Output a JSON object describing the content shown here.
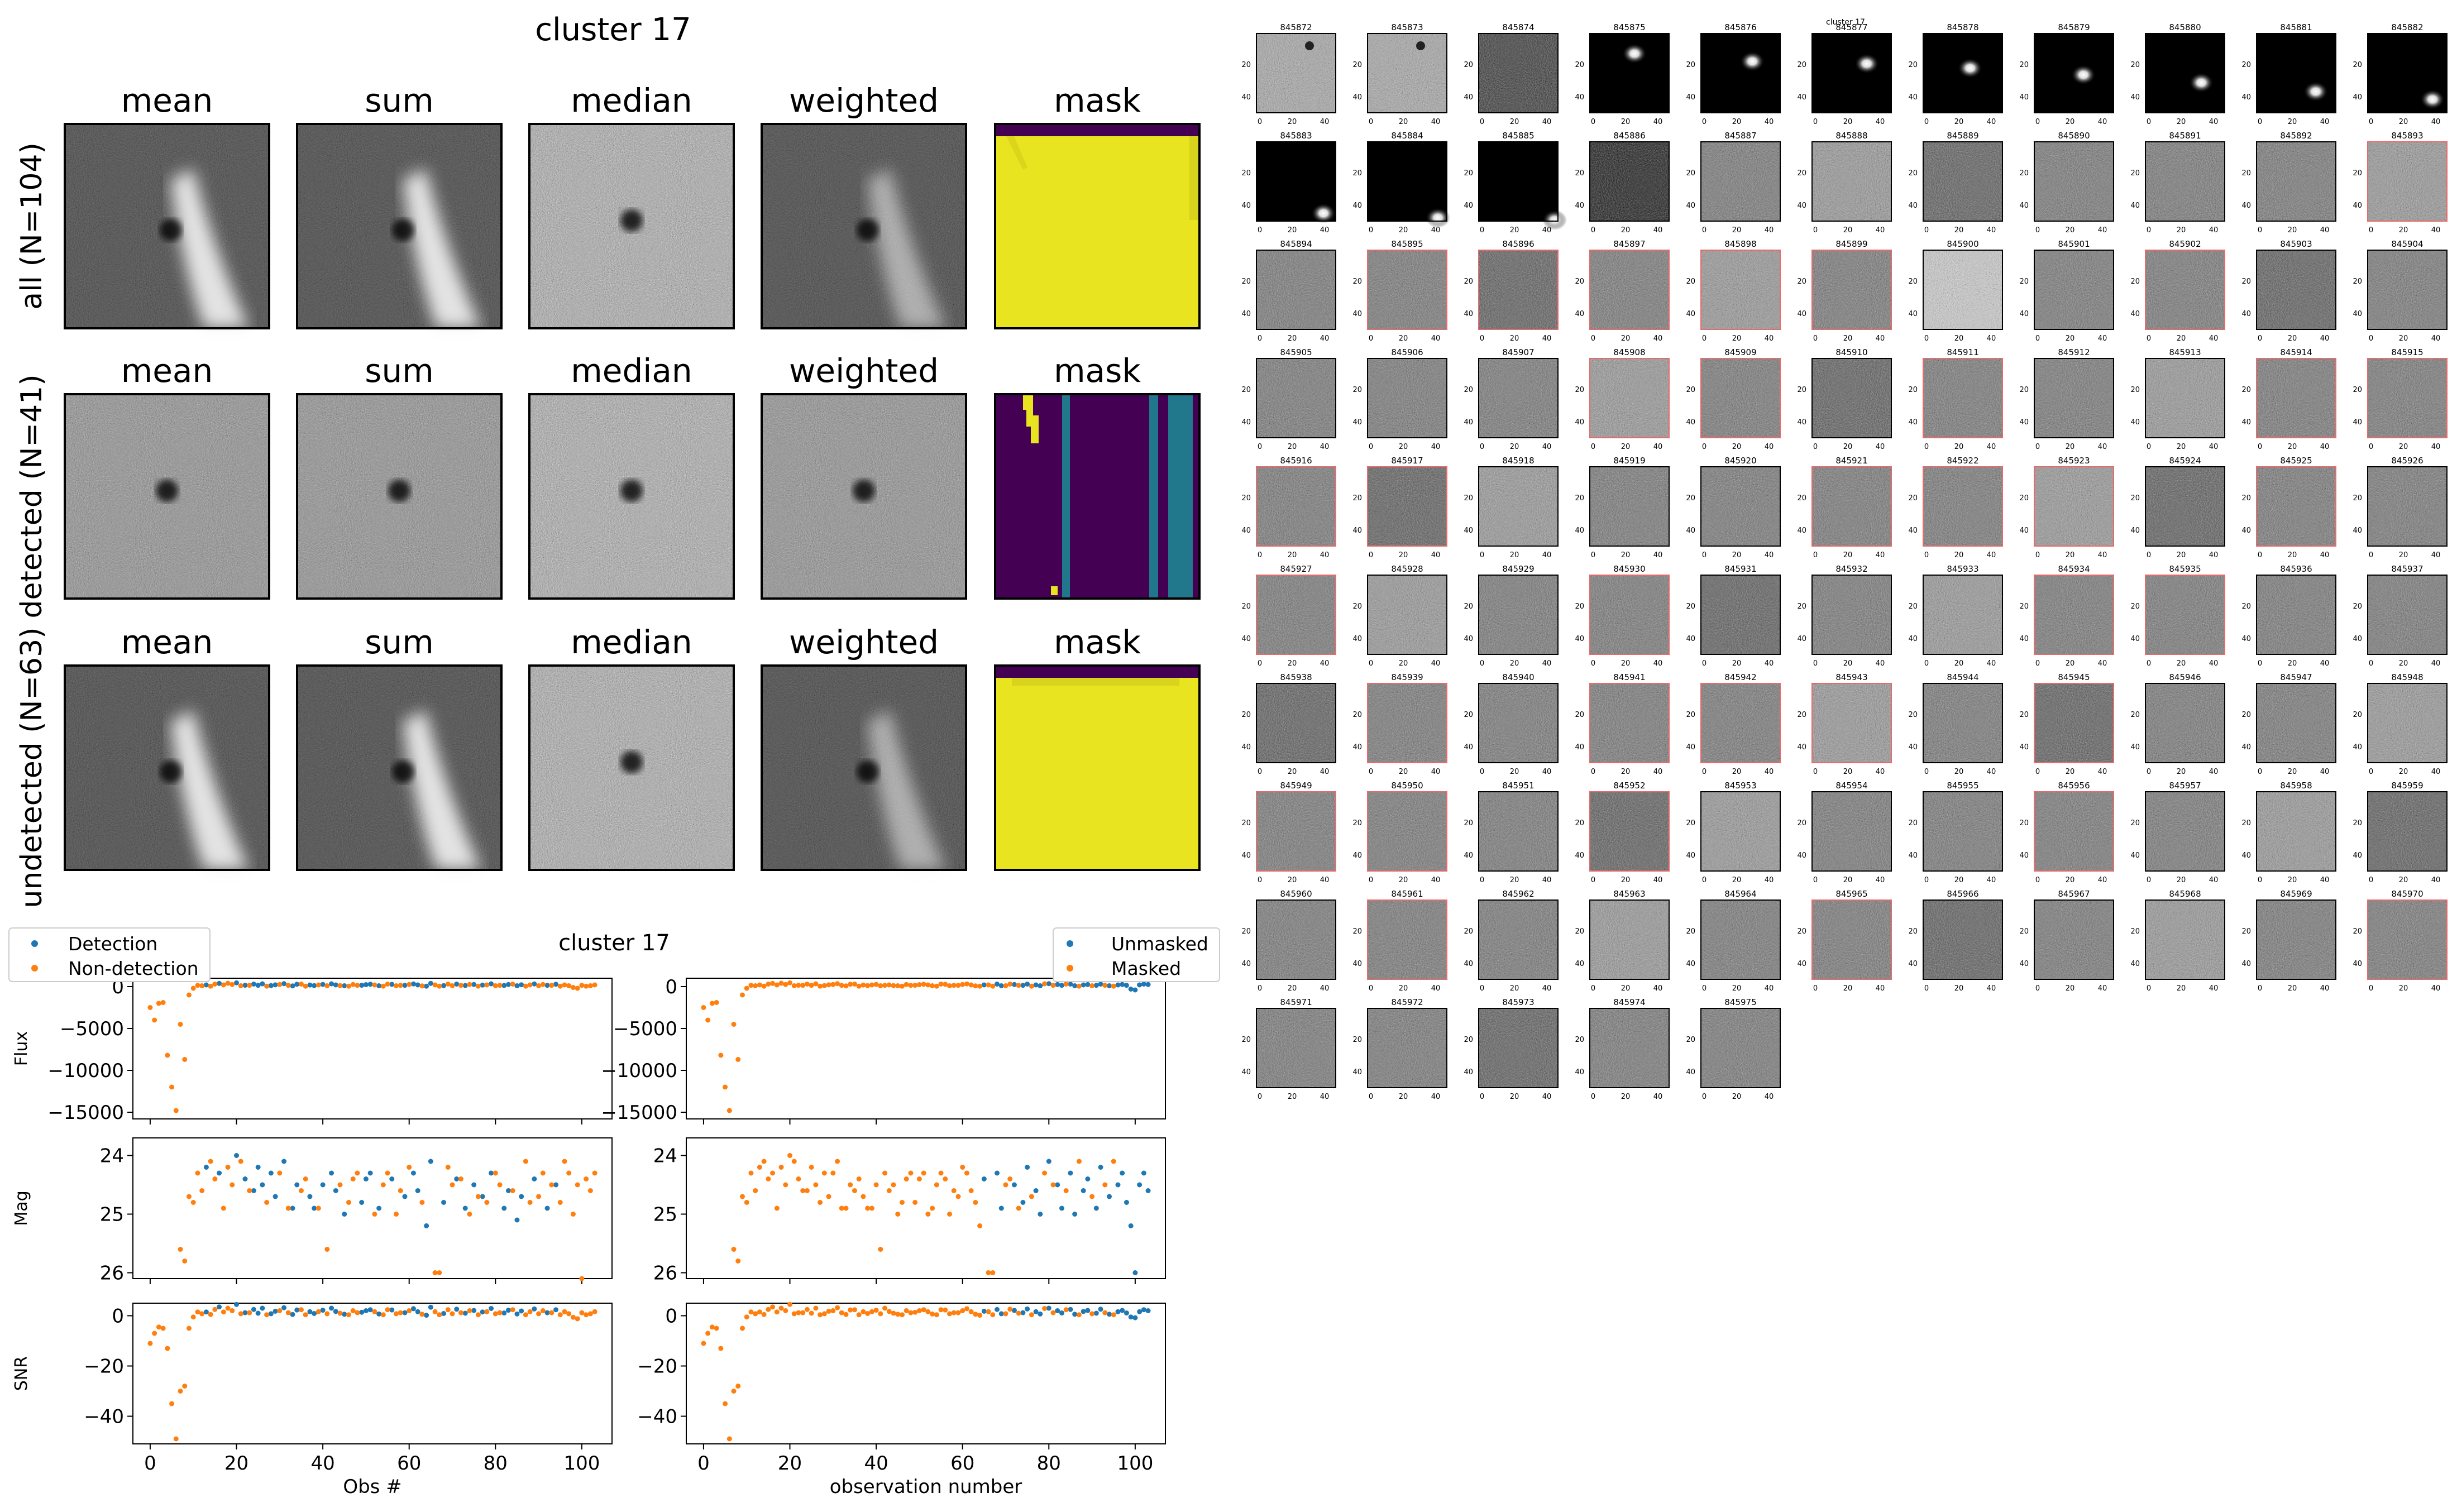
{
  "stack_figure": {
    "title": "cluster 17",
    "column_titles": [
      "mean",
      "sum",
      "median",
      "weighted",
      "mask"
    ],
    "row_labels": [
      "all (N=104)",
      "detected (N=41)",
      "undetected (N=63)"
    ]
  },
  "colors": {
    "detection": "#1f77b4",
    "non_detection": "#ff7f0e",
    "mask_yellow": "#e8e420",
    "mask_purple": "#440154",
    "mask_teal": "#21778c",
    "highlight_border": "#e86a6a"
  },
  "chart_data": [
    {
      "type": "scatter",
      "title": "cluster 17",
      "xlabel": "Obs #",
      "xlim": [
        -4,
        107
      ],
      "xticks": [
        0,
        20,
        40,
        60,
        80,
        100
      ],
      "legend": {
        "placement": "top-left",
        "entries": [
          "Detection",
          "Non-detection"
        ]
      },
      "panels": [
        {
          "ylabel": "Flux",
          "ylim": [
            -15800,
            1000
          ],
          "yticks": [
            0,
            -5000,
            -10000,
            -15000
          ]
        },
        {
          "ylabel": "Mag",
          "ylim": [
            26.1,
            23.7
          ],
          "yticks": [
            24,
            25,
            26
          ]
        },
        {
          "ylabel": "SNR",
          "ylim": [
            -51,
            5
          ],
          "yticks": [
            0,
            -20,
            -40
          ]
        }
      ],
      "series": [
        {
          "name": "Detection",
          "x": [
            13,
            16,
            20,
            22,
            24,
            25,
            26,
            28,
            29,
            31,
            33,
            34,
            37,
            38,
            40,
            42,
            43,
            45,
            49,
            50,
            51,
            53,
            56,
            59,
            61,
            62,
            64,
            65,
            68,
            71,
            73,
            75,
            77,
            79,
            82,
            83,
            85,
            86,
            89,
            92,
            94
          ],
          "flux": [
            200,
            380,
            450,
            160,
            300,
            150,
            330,
            120,
            210,
            350,
            80,
            280,
            190,
            120,
            260,
            330,
            200,
            100,
            160,
            230,
            280,
            100,
            270,
            150,
            320,
            200,
            50,
            380,
            120,
            300,
            130,
            250,
            180,
            330,
            140,
            250,
            100,
            220,
            320,
            150,
            280
          ],
          "mag": [
            24.2,
            24.3,
            24.0,
            24.4,
            24.6,
            24.2,
            24.5,
            24.3,
            24.7,
            24.1,
            24.9,
            24.5,
            24.7,
            24.9,
            24.5,
            24.3,
            24.6,
            25.0,
            24.8,
            24.4,
            24.3,
            24.9,
            24.4,
            24.7,
            24.3,
            24.6,
            25.2,
            24.1,
            24.8,
            24.4,
            24.9,
            24.5,
            24.7,
            24.3,
            24.9,
            24.6,
            25.1,
            24.7,
            24.4,
            24.9,
            24.5
          ],
          "snr": [
            1.5,
            3.5,
            4.5,
            1.2,
            2.5,
            1.0,
            3.0,
            0.8,
            1.8,
            3.2,
            0.5,
            2.3,
            1.6,
            0.9,
            2.2,
            3.0,
            1.7,
            0.6,
            1.4,
            2.0,
            2.4,
            0.7,
            2.3,
            1.2,
            2.8,
            1.6,
            0.2,
            3.4,
            0.9,
            2.6,
            1.0,
            2.1,
            1.5,
            2.9,
            1.1,
            2.2,
            0.7,
            1.9,
            2.7,
            1.2,
            2.4
          ]
        },
        {
          "name": "Non-detection",
          "x": [
            0,
            1,
            2,
            3,
            4,
            5,
            6,
            7,
            8,
            9,
            10,
            11,
            12,
            14,
            15,
            17,
            18,
            19,
            21,
            23,
            27,
            30,
            32,
            35,
            36,
            39,
            41,
            44,
            46,
            47,
            48,
            52,
            54,
            55,
            57,
            58,
            60,
            63,
            66,
            67,
            69,
            70,
            72,
            74,
            76,
            78,
            80,
            81,
            84,
            87,
            88,
            90,
            91,
            93,
            95,
            96,
            97,
            98,
            99,
            100,
            101,
            102,
            103
          ],
          "flux": [
            -2500,
            -4000,
            -2000,
            -1900,
            -8200,
            -12000,
            -14800,
            -4500,
            -8700,
            -1000,
            -200,
            150,
            100,
            50,
            300,
            200,
            400,
            250,
            100,
            150,
            50,
            250,
            150,
            300,
            50,
            200,
            100,
            120,
            50,
            250,
            150,
            200,
            50,
            300,
            100,
            150,
            250,
            80,
            200,
            50,
            300,
            100,
            150,
            250,
            50,
            200,
            100,
            150,
            300,
            50,
            200,
            100,
            250,
            150,
            50,
            200,
            100,
            -100,
            -200,
            150,
            50,
            100,
            200
          ],
          "mag": [
            null,
            null,
            null,
            null,
            null,
            null,
            null,
            25.6,
            25.8,
            24.7,
            24.8,
            24.3,
            24.6,
            24.1,
            24.4,
            24.9,
            24.2,
            24.5,
            24.1,
            24.6,
            24.8,
            24.3,
            24.9,
            24.6,
            24.4,
            24.9,
            25.6,
            24.5,
            24.8,
            24.4,
            24.3,
            25.0,
            24.5,
            24.3,
            25.0,
            24.6,
            24.2,
            24.8,
            26.0,
            26.0,
            24.2,
            24.5,
            24.4,
            25.0,
            24.7,
            24.8,
            24.3,
            24.5,
            24.6,
            24.1,
            24.8,
            24.7,
            24.3,
            24.5,
            24.8,
            24.1,
            24.3,
            25.0,
            24.5,
            26.1,
            24.4,
            24.6,
            24.3
          ],
          "snr": [
            -11,
            -7,
            -4.5,
            -5,
            -13,
            -35,
            -49,
            -30,
            -28,
            -5,
            -0.5,
            1.5,
            0.8,
            0.5,
            2.5,
            1.5,
            3.0,
            2.0,
            0.8,
            1.2,
            0.4,
            2.0,
            1.2,
            2.4,
            0.4,
            1.6,
            0.8,
            1.0,
            0.4,
            2.0,
            1.2,
            1.6,
            0.4,
            2.4,
            0.8,
            1.2,
            2.0,
            0.6,
            1.6,
            0.4,
            2.4,
            0.8,
            1.2,
            2.0,
            0.4,
            1.6,
            0.8,
            1.2,
            2.4,
            0.4,
            1.6,
            0.8,
            2.0,
            1.2,
            0.4,
            1.6,
            0.8,
            -0.6,
            -1.2,
            1.2,
            0.4,
            0.8,
            1.6
          ]
        }
      ]
    },
    {
      "type": "scatter",
      "xlabel": "observation number",
      "xlim": [
        -4,
        107
      ],
      "xticks": [
        0,
        20,
        40,
        60,
        80,
        100
      ],
      "legend": {
        "placement": "top-right",
        "entries": [
          "Unmasked",
          "Masked"
        ]
      },
      "panels": [
        {
          "ylim": [
            -15800,
            1000
          ],
          "yticks": [
            0,
            -5000,
            -10000,
            -15000
          ]
        },
        {
          "ylim": [
            26.1,
            23.7
          ],
          "yticks": [
            24,
            25,
            26
          ]
        },
        {
          "ylim": [
            -51,
            5
          ],
          "yticks": [
            0,
            -20,
            -40
          ]
        }
      ],
      "series": [
        {
          "name": "Unmasked",
          "x": [
            65,
            68,
            69,
            72,
            74,
            75,
            77,
            78,
            80,
            82,
            83,
            85,
            86,
            88,
            89,
            91,
            92,
            94,
            96,
            97,
            98,
            99,
            100,
            101,
            102,
            103
          ],
          "flux": [
            200,
            300,
            100,
            250,
            150,
            300,
            200,
            100,
            350,
            250,
            150,
            300,
            100,
            200,
            250,
            150,
            300,
            100,
            200,
            250,
            150,
            -300,
            -400,
            200,
            300,
            250
          ],
          "mag": [
            24.4,
            24.3,
            24.9,
            24.5,
            24.8,
            24.2,
            24.6,
            25.0,
            24.1,
            24.5,
            24.9,
            24.3,
            25.0,
            24.6,
            24.4,
            24.9,
            24.2,
            24.7,
            24.5,
            24.3,
            24.8,
            25.2,
            26.0,
            24.5,
            24.3,
            24.6
          ],
          "snr": [
            1.8,
            2.5,
            0.8,
            2.1,
            1.2,
            2.7,
            1.6,
            0.7,
            3.0,
            2.0,
            1.1,
            2.5,
            0.6,
            1.7,
            2.1,
            1.0,
            2.6,
            0.6,
            1.6,
            2.1,
            1.1,
            -0.5,
            -0.8,
            1.6,
            2.4,
            2.0
          ]
        },
        {
          "name": "Masked",
          "x": [
            0,
            1,
            2,
            3,
            4,
            5,
            6,
            7,
            8,
            9,
            10,
            11,
            12,
            13,
            14,
            15,
            16,
            17,
            18,
            19,
            20,
            21,
            22,
            23,
            24,
            25,
            26,
            27,
            28,
            29,
            30,
            31,
            32,
            33,
            34,
            35,
            36,
            37,
            38,
            39,
            40,
            41,
            42,
            43,
            44,
            45,
            46,
            47,
            48,
            49,
            50,
            51,
            52,
            53,
            54,
            55,
            56,
            57,
            58,
            59,
            60,
            61,
            62,
            63,
            64,
            66,
            67,
            70,
            71,
            73,
            76,
            79,
            81,
            84,
            87,
            90,
            93,
            95
          ],
          "flux": [
            -2500,
            -4000,
            -2000,
            -1900,
            -8200,
            -12000,
            -14800,
            -4500,
            -8700,
            -1000,
            -200,
            150,
            100,
            200,
            50,
            300,
            380,
            200,
            400,
            250,
            450,
            100,
            160,
            150,
            300,
            150,
            330,
            50,
            120,
            210,
            250,
            350,
            150,
            80,
            280,
            300,
            50,
            190,
            120,
            200,
            260,
            100,
            150,
            200,
            120,
            100,
            50,
            250,
            150,
            160,
            230,
            280,
            200,
            100,
            50,
            300,
            270,
            100,
            150,
            150,
            250,
            320,
            200,
            80,
            50,
            200,
            50,
            100,
            300,
            150,
            50,
            330,
            150,
            300,
            50,
            100,
            150,
            50
          ],
          "mag": [
            null,
            null,
            null,
            null,
            null,
            null,
            null,
            25.6,
            25.8,
            24.7,
            24.8,
            24.3,
            24.6,
            24.2,
            24.1,
            24.4,
            24.3,
            24.9,
            24.2,
            24.5,
            24.0,
            24.1,
            24.4,
            24.6,
            24.6,
            24.2,
            24.5,
            24.8,
            24.3,
            24.7,
            24.3,
            24.1,
            24.9,
            24.9,
            24.5,
            24.6,
            24.4,
            24.7,
            24.9,
            24.9,
            24.5,
            25.6,
            24.3,
            24.6,
            24.5,
            25.0,
            24.8,
            24.4,
            24.3,
            24.8,
            24.4,
            24.3,
            25.0,
            24.9,
            24.5,
            24.3,
            24.4,
            25.0,
            24.6,
            24.7,
            24.2,
            24.3,
            24.6,
            24.8,
            25.2,
            26.0,
            26.0,
            24.5,
            24.4,
            24.9,
            24.7,
            24.3,
            24.5,
            24.6,
            24.1,
            24.7,
            24.5,
            24.1
          ],
          "snr": [
            -11,
            -7,
            -4.5,
            -5,
            -13,
            -35,
            -49,
            -30,
            -28,
            -5,
            -0.5,
            1.5,
            0.8,
            1.5,
            0.5,
            2.5,
            3.5,
            1.5,
            3.0,
            2.0,
            4.5,
            0.8,
            1.2,
            1.2,
            2.5,
            1.0,
            3.0,
            0.4,
            0.8,
            1.8,
            2.0,
            3.2,
            1.2,
            0.5,
            2.3,
            2.4,
            0.4,
            1.6,
            0.9,
            1.6,
            2.2,
            0.8,
            3.0,
            1.7,
            1.0,
            0.6,
            0.4,
            2.0,
            1.2,
            1.4,
            2.0,
            2.4,
            1.6,
            0.7,
            0.4,
            2.4,
            2.3,
            0.8,
            1.2,
            1.2,
            2.0,
            2.8,
            1.6,
            0.6,
            0.2,
            1.6,
            0.4,
            0.8,
            2.6,
            1.0,
            0.4,
            2.9,
            1.2,
            2.4,
            0.4,
            0.8,
            1.2,
            0.4
          ]
        }
      ]
    }
  ],
  "thumbnails": {
    "title": "cluster 17",
    "ids": [
      "845872",
      "845873",
      "845874",
      "845875",
      "845876",
      "845877",
      "845878",
      "845879",
      "845880",
      "845881",
      "845882",
      "845883",
      "845884",
      "845885",
      "845886",
      "845887",
      "845888",
      "845889",
      "845890",
      "845891",
      "845892",
      "845893",
      "845894",
      "845895",
      "845896",
      "845897",
      "845898",
      "845899",
      "845900",
      "845901",
      "845902",
      "845903",
      "845904",
      "845905",
      "845906",
      "845907",
      "845908",
      "845909",
      "845910",
      "845911",
      "845912",
      "845913",
      "845914",
      "845915",
      "845916",
      "845917",
      "845918",
      "845919",
      "845920",
      "845921",
      "845922",
      "845923",
      "845924",
      "845925",
      "845926",
      "845927",
      "845928",
      "845929",
      "845930",
      "845931",
      "845932",
      "845933",
      "845934",
      "845935",
      "845936",
      "845937",
      "845938",
      "845939",
      "845940",
      "845941",
      "845942",
      "845943",
      "845944",
      "845945",
      "845946",
      "845947",
      "845948",
      "845949",
      "845950",
      "845951",
      "845952",
      "845953",
      "845954",
      "845955",
      "845956",
      "845957",
      "845958",
      "845959",
      "845960",
      "845961",
      "845962",
      "845963",
      "845964",
      "845965",
      "845966",
      "845967",
      "845968",
      "845969",
      "845970",
      "845971",
      "845972",
      "845973",
      "845974",
      "845975"
    ],
    "highlighted_ids": [
      "845893",
      "845895",
      "845896",
      "845897",
      "845898",
      "845899",
      "845902",
      "845908",
      "845909",
      "845911",
      "845914",
      "845915",
      "845916",
      "845917",
      "845921",
      "845922",
      "845923",
      "845925",
      "845927",
      "845930",
      "845934",
      "845935",
      "845939",
      "845941",
      "845942",
      "845943",
      "845945",
      "845949",
      "845950",
      "845952",
      "845956",
      "845961",
      "845965",
      "845970"
    ],
    "axis_ticks_x": [
      "0",
      "20",
      "40"
    ],
    "axis_ticks_y": [
      "0",
      "20",
      "40"
    ]
  }
}
